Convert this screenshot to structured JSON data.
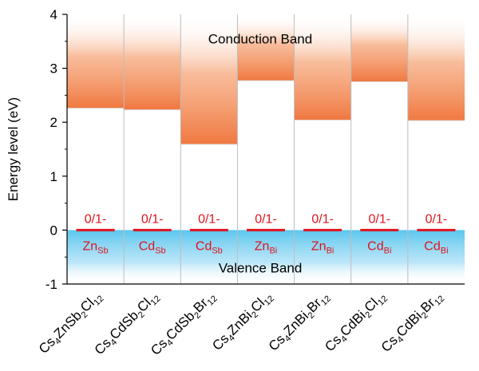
{
  "chart_data": {
    "type": "bar",
    "ylabel": "Energy level (eV)",
    "ylim": [
      -1,
      4
    ],
    "yticks": [
      "-1",
      "0",
      "1",
      "2",
      "3",
      "4"
    ],
    "conduction_band_label": "Conduction Band",
    "valence_band_label": "Valence Band",
    "level_label": "0/1-",
    "colors": {
      "conduction": "#f07840",
      "valence": "#5bc6ee",
      "level": "#e0141e",
      "divider": "#bdbdbd"
    },
    "categories": [
      {
        "compound": {
          "base": "Cs",
          "parts": [
            [
              "4",
              ""
            ],
            [
              "ZnSb",
              ""
            ],
            [
              "2",
              ""
            ],
            [
              "Cl",
              ""
            ],
            [
              "12",
              ""
            ]
          ]
        },
        "parts": [
          {
            "t": "Cs"
          },
          {
            "t": "4",
            "sub": true
          },
          {
            "t": "ZnSb"
          },
          {
            "t": "2",
            "sub": true
          },
          {
            "t": "Cl"
          },
          {
            "t": "12",
            "sub": true
          }
        ],
        "defect": "Zn",
        "defect_site": "Sb",
        "cbm": 2.26,
        "level": 0.0
      },
      {
        "parts": [
          {
            "t": "Cs"
          },
          {
            "t": "4",
            "sub": true
          },
          {
            "t": "CdSb"
          },
          {
            "t": "2",
            "sub": true
          },
          {
            "t": "Cl"
          },
          {
            "t": "12",
            "sub": true
          }
        ],
        "defect": "Cd",
        "defect_site": "Sb",
        "cbm": 2.23,
        "level": 0.0
      },
      {
        "parts": [
          {
            "t": "Cs"
          },
          {
            "t": "4",
            "sub": true
          },
          {
            "t": "CdSb"
          },
          {
            "t": "2",
            "sub": true
          },
          {
            "t": "Br"
          },
          {
            "t": "12",
            "sub": true
          }
        ],
        "defect": "Cd",
        "defect_site": "Sb",
        "cbm": 1.59,
        "level": 0.0
      },
      {
        "parts": [
          {
            "t": "Cs"
          },
          {
            "t": "4",
            "sub": true
          },
          {
            "t": "ZnBi"
          },
          {
            "t": "2",
            "sub": true
          },
          {
            "t": "Cl"
          },
          {
            "t": "12",
            "sub": true
          }
        ],
        "defect": "Zn",
        "defect_site": "Bi",
        "cbm": 2.77,
        "level": 0.0
      },
      {
        "parts": [
          {
            "t": "Cs"
          },
          {
            "t": "4",
            "sub": true
          },
          {
            "t": "ZnBi"
          },
          {
            "t": "2",
            "sub": true
          },
          {
            "t": "Br"
          },
          {
            "t": "12",
            "sub": true
          }
        ],
        "defect": "Zn",
        "defect_site": "Bi",
        "cbm": 2.04,
        "level": 0.0
      },
      {
        "parts": [
          {
            "t": "Cs"
          },
          {
            "t": "4",
            "sub": true
          },
          {
            "t": "CdBi"
          },
          {
            "t": "2",
            "sub": true
          },
          {
            "t": "Cl"
          },
          {
            "t": "12",
            "sub": true
          }
        ],
        "defect": "Cd",
        "defect_site": "Bi",
        "cbm": 2.75,
        "level": 0.0
      },
      {
        "parts": [
          {
            "t": "Cs"
          },
          {
            "t": "4",
            "sub": true
          },
          {
            "t": "CdBi"
          },
          {
            "t": "2",
            "sub": true
          },
          {
            "t": "Br"
          },
          {
            "t": "12",
            "sub": true
          }
        ],
        "defect": "Cd",
        "defect_site": "Bi",
        "cbm": 2.03,
        "level": 0.0
      }
    ]
  }
}
